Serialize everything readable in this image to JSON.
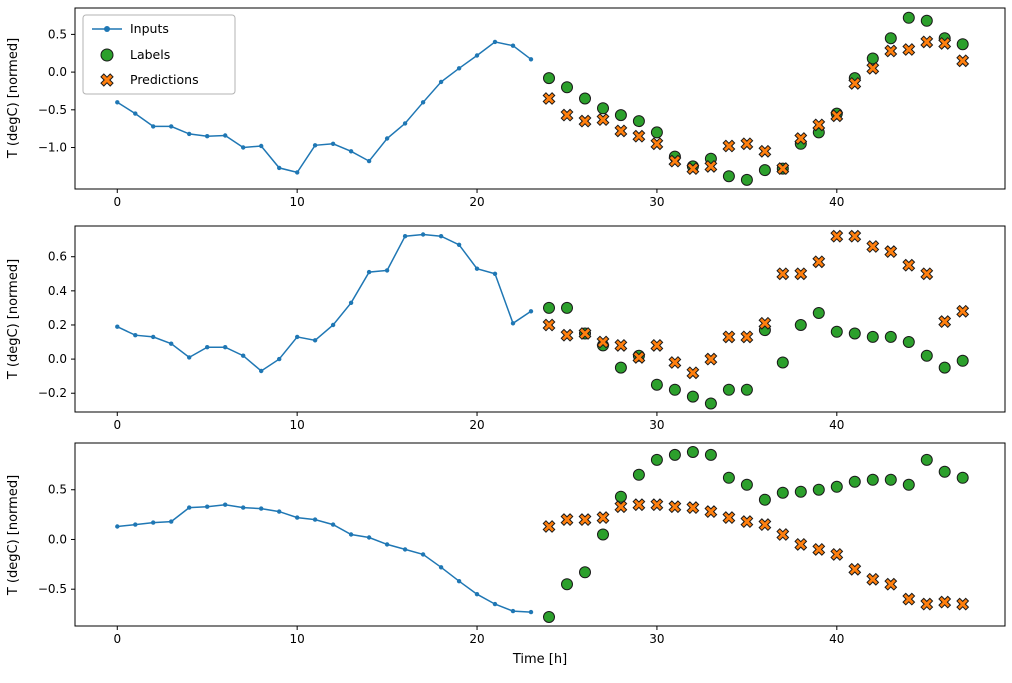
{
  "figure": {
    "background": "#ffffff"
  },
  "legend": {
    "position": "upper left"
  },
  "chart_data": [
    {
      "type": "line",
      "title": "",
      "xlabel": "",
      "ylabel": "T (degC) [normed]",
      "xlim": [
        -2.35,
        49.35
      ],
      "ylim": [
        -1.55,
        0.85
      ],
      "xticks": [
        0,
        10,
        20,
        30,
        40
      ],
      "yticks": [
        0.5,
        0.0,
        -0.5,
        -1.0
      ],
      "grid": false,
      "legend_position": "upper left",
      "series": [
        {
          "name": "Inputs",
          "type": "line",
          "color": "#1f77b4",
          "x": [
            0,
            1,
            2,
            3,
            4,
            5,
            6,
            7,
            8,
            9,
            10,
            11,
            12,
            13,
            14,
            15,
            16,
            17,
            18,
            19,
            20,
            21,
            22,
            23
          ],
          "y": [
            -0.4,
            -0.55,
            -0.72,
            -0.72,
            -0.82,
            -0.85,
            -0.84,
            -1.0,
            -0.98,
            -1.27,
            -1.33,
            -0.97,
            -0.95,
            -1.05,
            -1.18,
            -0.88,
            -0.68,
            -0.4,
            -0.13,
            0.05,
            0.22,
            0.4,
            0.35,
            0.17
          ]
        },
        {
          "name": "Labels",
          "type": "scatter-circle",
          "color": "#2ca02c",
          "edge_color": "#1a1a1a",
          "x": [
            24,
            25,
            26,
            27,
            28,
            29,
            30,
            31,
            32,
            33,
            34,
            35,
            36,
            37,
            38,
            39,
            40,
            41,
            42,
            43,
            44,
            45,
            46,
            47
          ],
          "y": [
            -0.08,
            -0.2,
            -0.35,
            -0.48,
            -0.57,
            -0.65,
            -0.8,
            -1.12,
            -1.25,
            -1.15,
            -1.38,
            -1.43,
            -1.3,
            -1.28,
            -0.95,
            -0.8,
            -0.55,
            -0.08,
            0.18,
            0.45,
            0.72,
            0.68,
            0.45,
            0.37
          ]
        },
        {
          "name": "Predictions",
          "type": "scatter-x",
          "color": "#ff7f0e",
          "edge_color": "#1a1a1a",
          "x": [
            24,
            25,
            26,
            27,
            28,
            29,
            30,
            31,
            32,
            33,
            34,
            35,
            36,
            37,
            38,
            39,
            40,
            41,
            42,
            43,
            44,
            45,
            46,
            47
          ],
          "y": [
            -0.35,
            -0.57,
            -0.65,
            -0.63,
            -0.78,
            -0.85,
            -0.95,
            -1.18,
            -1.28,
            -1.25,
            -0.98,
            -0.95,
            -1.05,
            -1.28,
            -0.88,
            -0.7,
            -0.58,
            -0.15,
            0.05,
            0.28,
            0.3,
            0.4,
            0.38,
            0.15
          ]
        }
      ]
    },
    {
      "type": "line",
      "title": "",
      "xlabel": "",
      "ylabel": "T (degC) [normed]",
      "xlim": [
        -2.35,
        49.35
      ],
      "ylim": [
        -0.31,
        0.78
      ],
      "xticks": [
        0,
        10,
        20,
        30,
        40
      ],
      "yticks": [
        0.6,
        0.4,
        0.2,
        0.0,
        -0.2
      ],
      "grid": false,
      "series": [
        {
          "name": "Inputs",
          "type": "line",
          "color": "#1f77b4",
          "x": [
            0,
            1,
            2,
            3,
            4,
            5,
            6,
            7,
            8,
            9,
            10,
            11,
            12,
            13,
            14,
            15,
            16,
            17,
            18,
            19,
            20,
            21,
            22,
            23
          ],
          "y": [
            0.19,
            0.14,
            0.13,
            0.09,
            0.01,
            0.07,
            0.07,
            0.02,
            -0.07,
            0.0,
            0.13,
            0.11,
            0.2,
            0.33,
            0.51,
            0.52,
            0.72,
            0.73,
            0.72,
            0.67,
            0.53,
            0.5,
            0.21,
            0.28
          ]
        },
        {
          "name": "Labels",
          "type": "scatter-circle",
          "color": "#2ca02c",
          "edge_color": "#1a1a1a",
          "x": [
            24,
            25,
            26,
            27,
            28,
            29,
            30,
            31,
            32,
            33,
            34,
            35,
            36,
            37,
            38,
            39,
            40,
            41,
            42,
            43,
            44,
            45,
            46,
            47
          ],
          "y": [
            0.3,
            0.3,
            0.15,
            0.08,
            -0.05,
            0.02,
            -0.15,
            -0.18,
            -0.22,
            -0.26,
            -0.18,
            -0.18,
            0.17,
            -0.02,
            0.2,
            0.27,
            0.16,
            0.15,
            0.13,
            0.13,
            0.1,
            0.02,
            -0.05,
            -0.01
          ]
        },
        {
          "name": "Predictions",
          "type": "scatter-x",
          "color": "#ff7f0e",
          "edge_color": "#1a1a1a",
          "x": [
            24,
            25,
            26,
            27,
            28,
            29,
            30,
            31,
            32,
            33,
            34,
            35,
            36,
            37,
            38,
            39,
            40,
            41,
            42,
            43,
            44,
            45,
            46,
            47
          ],
          "y": [
            0.2,
            0.14,
            0.15,
            0.1,
            0.08,
            0.01,
            0.08,
            -0.02,
            -0.08,
            0.0,
            0.13,
            0.13,
            0.21,
            0.5,
            0.5,
            0.57,
            0.72,
            0.72,
            0.66,
            0.63,
            0.55,
            0.5,
            0.22,
            0.28
          ]
        }
      ]
    },
    {
      "type": "line",
      "title": "",
      "xlabel": "Time [h]",
      "ylabel": "T (degC) [normed]",
      "xlim": [
        -2.35,
        49.35
      ],
      "ylim": [
        -0.87,
        0.97
      ],
      "xticks": [
        0,
        10,
        20,
        30,
        40
      ],
      "yticks": [
        0.5,
        0.0,
        -0.5
      ],
      "grid": false,
      "series": [
        {
          "name": "Inputs",
          "type": "line",
          "color": "#1f77b4",
          "x": [
            0,
            1,
            2,
            3,
            4,
            5,
            6,
            7,
            8,
            9,
            10,
            11,
            12,
            13,
            14,
            15,
            16,
            17,
            18,
            19,
            20,
            21,
            22,
            23
          ],
          "y": [
            0.13,
            0.15,
            0.17,
            0.18,
            0.32,
            0.33,
            0.35,
            0.32,
            0.31,
            0.28,
            0.22,
            0.2,
            0.15,
            0.05,
            0.02,
            -0.05,
            -0.1,
            -0.15,
            -0.28,
            -0.42,
            -0.55,
            -0.65,
            -0.72,
            -0.73
          ]
        },
        {
          "name": "Labels",
          "type": "scatter-circle",
          "color": "#2ca02c",
          "edge_color": "#1a1a1a",
          "x": [
            24,
            25,
            26,
            27,
            28,
            29,
            30,
            31,
            32,
            33,
            34,
            35,
            36,
            37,
            38,
            39,
            40,
            41,
            42,
            43,
            44,
            45,
            46,
            47
          ],
          "y": [
            -0.78,
            -0.45,
            -0.33,
            0.05,
            0.43,
            0.65,
            0.8,
            0.85,
            0.88,
            0.85,
            0.62,
            0.55,
            0.4,
            0.47,
            0.48,
            0.5,
            0.53,
            0.58,
            0.6,
            0.6,
            0.55,
            0.8,
            0.68,
            0.62
          ]
        },
        {
          "name": "Predictions",
          "type": "scatter-x",
          "color": "#ff7f0e",
          "edge_color": "#1a1a1a",
          "x": [
            24,
            25,
            26,
            27,
            28,
            29,
            30,
            31,
            32,
            33,
            34,
            35,
            36,
            37,
            38,
            39,
            40,
            41,
            42,
            43,
            44,
            45,
            46,
            47
          ],
          "y": [
            0.13,
            0.2,
            0.2,
            0.22,
            0.33,
            0.35,
            0.35,
            0.33,
            0.32,
            0.28,
            0.22,
            0.18,
            0.15,
            0.05,
            -0.05,
            -0.1,
            -0.15,
            -0.3,
            -0.4,
            -0.45,
            -0.6,
            -0.65,
            -0.63,
            -0.65
          ]
        }
      ]
    }
  ]
}
